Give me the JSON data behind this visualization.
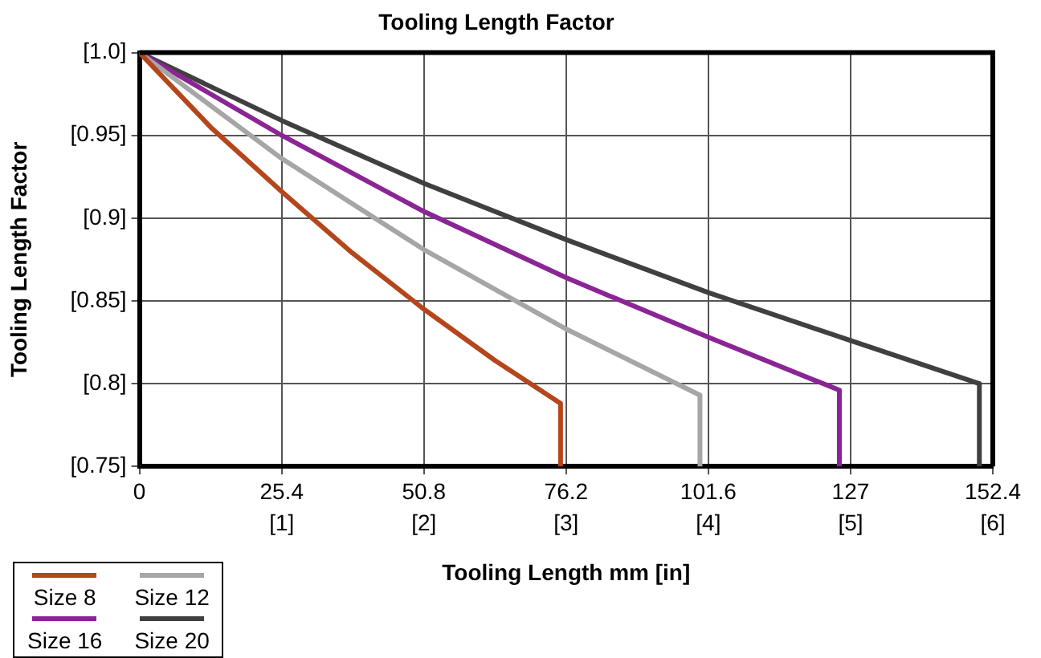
{
  "chart_data": {
    "type": "line",
    "title": "Tooling Length Factor",
    "xlabel": "Tooling Length mm [in]",
    "ylabel": "Tooling Length Factor",
    "xlim": [
      0,
      152.4
    ],
    "ylim": [
      0.75,
      1.0
    ],
    "xticks": [
      0,
      25.4,
      50.8,
      76.2,
      101.6,
      127,
      152.4
    ],
    "x2lim": [
      0,
      6
    ],
    "x2ticks": [
      {
        "value": 1,
        "label": "[1]"
      },
      {
        "value": 2,
        "label": "[2]"
      },
      {
        "value": 3,
        "label": "[3]"
      },
      {
        "value": 4,
        "label": "[4]"
      },
      {
        "value": 5,
        "label": "[5]"
      },
      {
        "value": 6,
        "label": "[6]"
      }
    ],
    "yticks": [
      {
        "value": 0.75,
        "label": "[0.75]"
      },
      {
        "value": 0.8,
        "label": "[0.8]"
      },
      {
        "value": 0.85,
        "label": "[0.85]"
      },
      {
        "value": 0.9,
        "label": "[0.9]"
      },
      {
        "value": 0.95,
        "label": "[0.95]"
      },
      {
        "value": 1.0,
        "label": "[1.0]"
      }
    ],
    "grid": true,
    "legend": "bottom left",
    "marker": "none",
    "line_style": "solid",
    "series": [
      {
        "name": "Size 8",
        "color": "#b5461c",
        "x": [
          0,
          12.7,
          25.4,
          38,
          50.8,
          63.5,
          75.2,
          75.2
        ],
        "values": [
          1.0,
          0.955,
          0.916,
          0.879,
          0.845,
          0.814,
          0.788,
          0.75
        ]
      },
      {
        "name": "Size 12",
        "color": "#a6a6a6",
        "x": [
          0,
          25.4,
          50.8,
          76.2,
          100.1,
          100.1
        ],
        "values": [
          1.0,
          0.936,
          0.881,
          0.833,
          0.793,
          0.75
        ]
      },
      {
        "name": "Size 16",
        "color": "#8b2595",
        "x": [
          0,
          25.4,
          50.8,
          76.2,
          101.6,
          125,
          125
        ],
        "values": [
          1.0,
          0.95,
          0.904,
          0.864,
          0.828,
          0.796,
          0.75
        ]
      },
      {
        "name": "Size 20",
        "color": "#404040",
        "x": [
          0,
          25.4,
          50.8,
          76.2,
          101.6,
          127,
          150,
          150
        ],
        "values": [
          1.0,
          0.959,
          0.921,
          0.887,
          0.855,
          0.826,
          0.8,
          0.75
        ]
      }
    ]
  }
}
